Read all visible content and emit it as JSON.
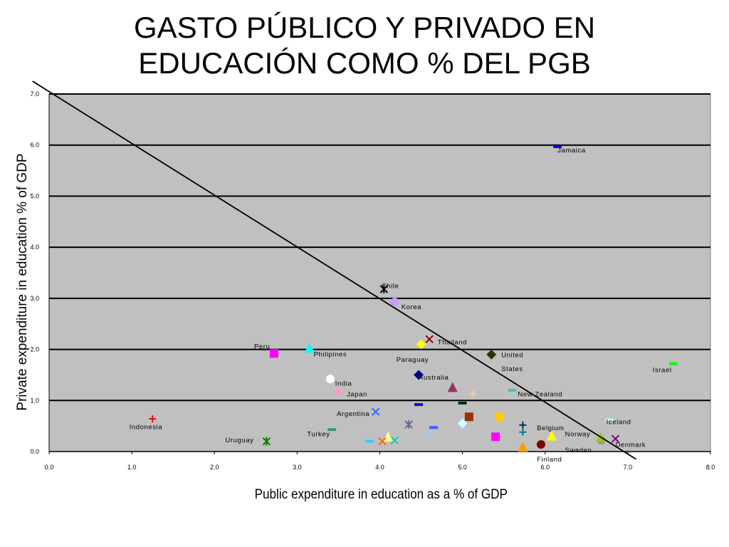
{
  "title_line1": "GASTO PÚBLICO Y PRIVADO EN",
  "title_line2": "EDUCACIÓN COMO % DEL PGB",
  "chart_data": {
    "type": "scatter",
    "xlabel": "Public expenditure in education as a % of GDP",
    "ylabel": "Private expenditure in education % of GDP",
    "xlim": [
      0,
      8
    ],
    "ylim": [
      0,
      7
    ],
    "x_ticks": [
      "0.0",
      "1.0",
      "2.0",
      "3.0",
      "4.0",
      "5.0",
      "6.0",
      "7.0",
      "8.0"
    ],
    "y_ticks": [
      "0.0",
      "1.0",
      "2.0",
      "3.0",
      "4.0",
      "5.0",
      "6.0",
      "7.0"
    ],
    "grid": "horizontal",
    "plot_background": "#c0c0c0",
    "reference_line": {
      "x1": -0.2,
      "y1": 7.25,
      "x2": 7.1,
      "y2": -0.15
    },
    "points": [
      {
        "label": "Jamaica",
        "x": 6.15,
        "y": 5.97,
        "marker": "dash",
        "color": "#0000ff",
        "lx": 6.15,
        "ly": 5.9
      },
      {
        "label": "Chile",
        "x": 4.05,
        "y": 3.18,
        "marker": "asterisk",
        "color": "#000000",
        "lx": 4.02,
        "ly": 3.24
      },
      {
        "label": "Korea",
        "x": 4.18,
        "y": 2.93,
        "marker": "circle",
        "color": "#cc99ff",
        "lx": 4.26,
        "ly": 2.83
      },
      {
        "label": "Thailand",
        "x": 4.6,
        "y": 2.2,
        "marker": "x",
        "color": "#990000",
        "lx": 4.7,
        "ly": 2.14
      },
      {
        "label": "Paraguay",
        "x": 4.5,
        "y": 2.1,
        "marker": "diamond",
        "color": "#ffff00",
        "lx": 4.2,
        "ly": 1.8
      },
      {
        "label": "United",
        "x": 5.35,
        "y": 1.9,
        "marker": "diamond",
        "color": "#333300",
        "lx": 5.47,
        "ly": 1.89
      },
      {
        "label": "States",
        "x": null,
        "y": null,
        "marker": "none",
        "color": "#000000",
        "lx": 5.47,
        "ly": 1.62
      },
      {
        "label": "Australia",
        "x": 4.47,
        "y": 1.5,
        "marker": "diamond",
        "color": "#000080",
        "lx": 4.47,
        "ly": 1.45
      },
      {
        "label": "Peru",
        "x": 2.72,
        "y": 1.92,
        "marker": "square",
        "color": "#ff00ff",
        "lx": 2.48,
        "ly": 2.06
      },
      {
        "label": "Philipines",
        "x": 3.15,
        "y": 2.02,
        "marker": "triangle",
        "color": "#00ffff",
        "lx": 3.2,
        "ly": 1.9
      },
      {
        "label": "India",
        "x": 3.4,
        "y": 1.42,
        "marker": "circle",
        "color": "#ffffff",
        "lx": 3.46,
        "ly": 1.33
      },
      {
        "label": "Japan",
        "x": 3.5,
        "y": 1.18,
        "marker": "asterisk",
        "color": "#ff99cc",
        "lx": 3.6,
        "ly": 1.12
      },
      {
        "label": "New Zealand",
        "x": 5.6,
        "y": 1.2,
        "marker": "dash",
        "color": "#33cccc",
        "lx": 5.67,
        "ly": 1.12
      },
      {
        "label": "Israel",
        "x": 7.55,
        "y": 1.72,
        "marker": "dash",
        "color": "#00ff00",
        "lx": 7.3,
        "ly": 1.6
      },
      {
        "label": "Argentina",
        "x": 3.95,
        "y": 0.78,
        "marker": "x",
        "color": "#3366ff",
        "lx": 3.48,
        "ly": 0.74
      },
      {
        "label": "Indonesia",
        "x": 1.25,
        "y": 0.64,
        "marker": "plus",
        "color": "#ff0000",
        "lx": 0.97,
        "ly": 0.48
      },
      {
        "label": "Turkey",
        "x": 3.42,
        "y": 0.43,
        "marker": "dash",
        "color": "#339966",
        "lx": 3.12,
        "ly": 0.34
      },
      {
        "label": "Uruguay",
        "x": 2.63,
        "y": 0.2,
        "marker": "asterisk",
        "color": "#008000",
        "lx": 2.13,
        "ly": 0.22
      },
      {
        "label": "Iceland",
        "x": 6.78,
        "y": 0.62,
        "marker": "dash",
        "color": "#ccffcc",
        "lx": 6.74,
        "ly": 0.58
      },
      {
        "label": "Belgium",
        "x": 5.73,
        "y": 0.52,
        "marker": "plus",
        "color": "#003366",
        "lx": 5.9,
        "ly": 0.46
      },
      {
        "label": "Norway",
        "x": 6.08,
        "y": 0.3,
        "marker": "triangle",
        "color": "#ffff00",
        "lx": 6.24,
        "ly": 0.34
      },
      {
        "label": "Denmark",
        "x": 6.85,
        "y": 0.25,
        "marker": "x",
        "color": "#800080",
        "lx": 6.85,
        "ly": 0.13
      },
      {
        "label": "Sweden",
        "x": 6.68,
        "y": 0.22,
        "marker": "circle",
        "color": "#999999",
        "lx": 6.24,
        "ly": 0.03
      },
      {
        "label": "Finland",
        "x": 5.95,
        "y": 0.14,
        "marker": "circle",
        "color": "#800000",
        "lx": 5.9,
        "ly": -0.15
      },
      {
        "label": "",
        "x": 5.73,
        "y": 0.08,
        "marker": "triangle",
        "color": "#ff9900",
        "lx": null,
        "ly": null
      },
      {
        "label": "",
        "x": 4.88,
        "y": 1.25,
        "marker": "triangle",
        "color": "#993366",
        "lx": null,
        "ly": null
      },
      {
        "label": "",
        "x": 5.13,
        "y": 1.13,
        "marker": "plus",
        "color": "#ffcc99",
        "lx": null,
        "ly": null
      },
      {
        "label": "",
        "x": 5.0,
        "y": 0.95,
        "marker": "dash",
        "color": "#003300",
        "lx": null,
        "ly": null
      },
      {
        "label": "",
        "x": 4.47,
        "y": 0.92,
        "marker": "dash",
        "color": "#0000ff",
        "lx": null,
        "ly": null
      },
      {
        "label": "",
        "x": 5.08,
        "y": 0.68,
        "marker": "square",
        "color": "#993300",
        "lx": null,
        "ly": null
      },
      {
        "label": "",
        "x": 5.45,
        "y": 0.68,
        "marker": "square",
        "color": "#ffcc00",
        "lx": null,
        "ly": null
      },
      {
        "label": "",
        "x": 4.35,
        "y": 0.53,
        "marker": "asterisk",
        "color": "#666699",
        "lx": null,
        "ly": null
      },
      {
        "label": "",
        "x": 5.0,
        "y": 0.55,
        "marker": "diamond",
        "color": "#ccffff",
        "lx": null,
        "ly": null
      },
      {
        "label": "",
        "x": 4.65,
        "y": 0.47,
        "marker": "dash",
        "color": "#3366ff",
        "lx": null,
        "ly": null
      },
      {
        "label": "",
        "x": 4.58,
        "y": 0.33,
        "marker": "x",
        "color": "#99ccff",
        "lx": null,
        "ly": null
      },
      {
        "label": "",
        "x": 5.4,
        "y": 0.29,
        "marker": "square",
        "color": "#ff00ff",
        "lx": null,
        "ly": null
      },
      {
        "label": "",
        "x": 5.73,
        "y": 0.38,
        "marker": "plus",
        "color": "#008080",
        "lx": null,
        "ly": null
      },
      {
        "label": "",
        "x": 4.1,
        "y": 0.28,
        "marker": "triangle",
        "color": "#ffff99",
        "lx": null,
        "ly": null
      },
      {
        "label": "",
        "x": 4.18,
        "y": 0.22,
        "marker": "x",
        "color": "#00cccc",
        "lx": null,
        "ly": null
      },
      {
        "label": "",
        "x": 4.03,
        "y": 0.2,
        "marker": "x",
        "color": "#ff6600",
        "lx": null,
        "ly": null
      },
      {
        "label": "",
        "x": 3.88,
        "y": 0.2,
        "marker": "dash",
        "color": "#33ccff",
        "lx": null,
        "ly": null
      },
      {
        "label": "",
        "x": 6.67,
        "y": 0.27,
        "marker": "triangle",
        "color": "#99cc00",
        "lx": null,
        "ly": null
      }
    ]
  }
}
